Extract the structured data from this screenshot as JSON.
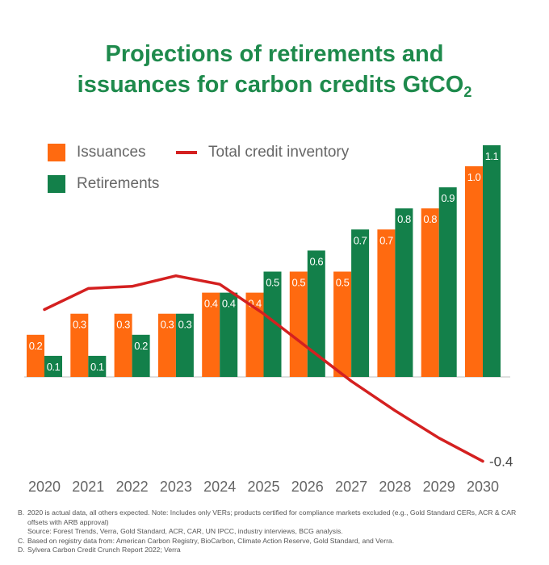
{
  "title": {
    "line1": "Projections of retirements and",
    "line2_main": "issuances for carbon credits GtCO",
    "line2_sub": "2"
  },
  "chart_data": {
    "type": "bar",
    "categories": [
      "2020",
      "2021",
      "2022",
      "2023",
      "2024",
      "2025",
      "2026",
      "2027",
      "2028",
      "2029",
      "2030"
    ],
    "series": [
      {
        "name": "Issuances",
        "values": [
          0.2,
          0.3,
          0.3,
          0.3,
          0.4,
          0.4,
          0.5,
          0.5,
          0.7,
          0.8,
          1.0
        ],
        "color": "#ff6a10"
      },
      {
        "name": "Retirements",
        "values": [
          0.1,
          0.1,
          0.2,
          0.3,
          0.4,
          0.5,
          0.6,
          0.7,
          0.8,
          0.9,
          1.1
        ],
        "color": "#13804a"
      }
    ],
    "line_series": {
      "name": "Total credit inventory",
      "values": [
        0.32,
        0.42,
        0.43,
        0.48,
        0.44,
        0.3,
        0.14,
        -0.02,
        -0.16,
        -0.29,
        -0.4
      ],
      "color": "#d42020"
    },
    "value_labels": {
      "Issuances": [
        "0.2",
        "0.3",
        "0.3",
        "0.3",
        "0.4",
        "0.4",
        "0.5",
        "0.5",
        "0.7",
        "0.8",
        "1.0"
      ],
      "Retirements": [
        "0.1",
        "0.1",
        "0.2",
        "0.3",
        "0.4",
        "0.5",
        "0.6",
        "0.7",
        "0.8",
        "0.9",
        "1.1"
      ]
    },
    "end_label": "-0.4",
    "ylim": [
      -0.45,
      1.2
    ],
    "grid": false,
    "legend": "top-left"
  },
  "notes": [
    {
      "key": "B.",
      "text": "2020 is actual data, all others expected. Note: Includes only VERs; products certified for compliance markets excluded (e.g., Gold Standard CERs, ACR & CAR offsets with ARB approval)\nSource: Forest Trends, Verra, Gold Standard, ACR, CAR, UN IPCC, industry interviews, BCG analysis."
    },
    {
      "key": "C.",
      "text": "Based on registry data from: American Carbon Registry, BioCarbon, Climate Action Reserve, Gold Standard, and Verra."
    },
    {
      "key": "D.",
      "text": "Sylvera Carbon Credit Crunch Report 2022; Verra"
    }
  ]
}
